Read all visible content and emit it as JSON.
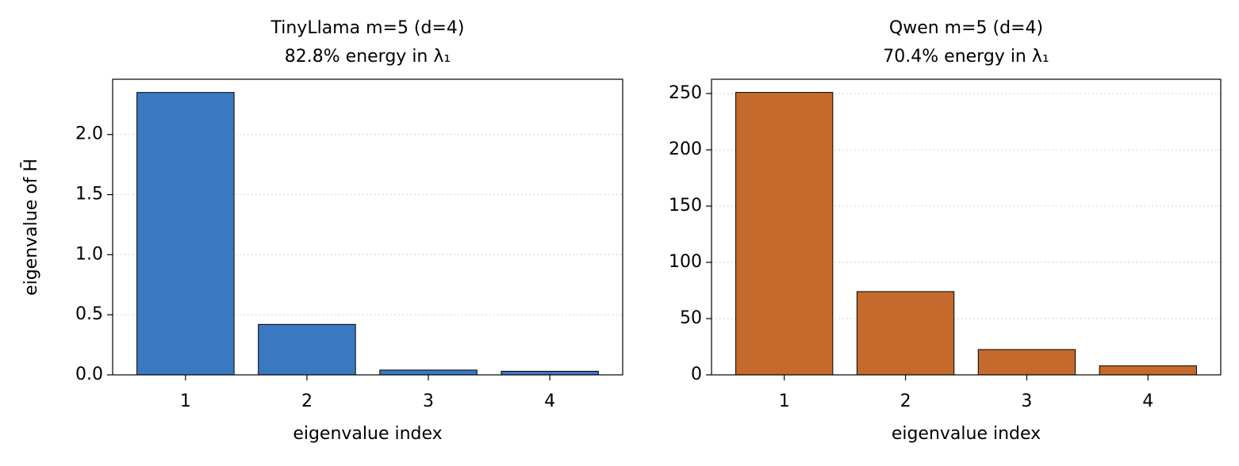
{
  "chart_data": [
    {
      "type": "bar",
      "title": "TinyLlama m=5 (d=4)",
      "subtitle": "82.8% energy in λ₁",
      "categories": [
        "1",
        "2",
        "3",
        "4"
      ],
      "values": [
        2.35,
        0.42,
        0.04,
        0.03
      ],
      "color": "#3b78c2",
      "xlabel": "eigenvalue index",
      "ylabel": "eigenvalue of H̄",
      "ylim": [
        0,
        2.46
      ],
      "yticks": [
        {
          "value": 0,
          "label": "0.0"
        },
        0.5,
        {
          "value": 1,
          "label": "1.0"
        },
        1.5,
        {
          "value": 2,
          "label": "2.0"
        }
      ],
      "grid": true
    },
    {
      "type": "bar",
      "title": "Qwen m=5 (d=4)",
      "subtitle": "70.4% energy in λ₁",
      "categories": [
        "1",
        "2",
        "3",
        "4"
      ],
      "values": [
        251,
        74,
        22.5,
        8
      ],
      "color": "#c46a2c",
      "xlabel": "eigenvalue index",
      "ylim": [
        0,
        262.7
      ],
      "yticks": [
        0,
        50,
        100,
        150,
        200,
        250
      ],
      "grid": true
    }
  ]
}
